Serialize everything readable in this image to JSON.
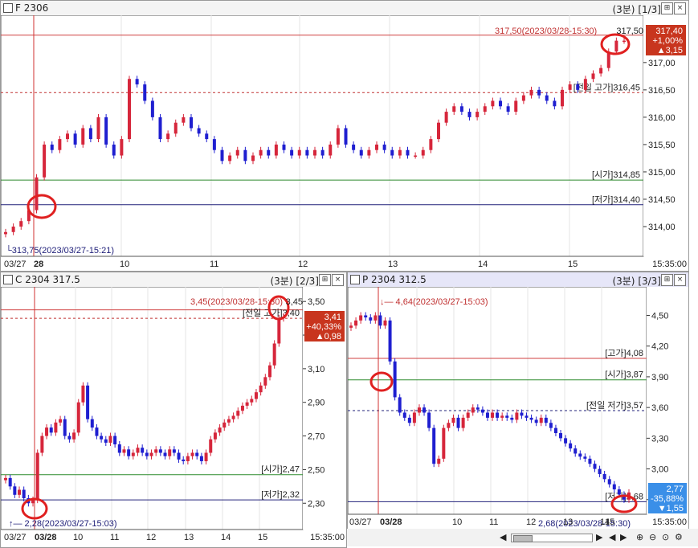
{
  "panels": {
    "futures": {
      "title": "F 2306",
      "timeframe": "(3분)",
      "index": "[1/3]",
      "time_end": "15:35:00",
      "high_note": "317,50(2023/03/28-15:30)",
      "high_val": "317,50",
      "low_note": "313,75(2023/03/27-15:21)",
      "prev_high_label": "[전일 고가]316,45",
      "open_label": "[시가]314,85",
      "low_label": "[저가]314,40",
      "badge": {
        "price": "317,40",
        "pct": "+1,00%",
        "chg": "▲3,15"
      },
      "x_labels": [
        "03/27",
        "28",
        "10",
        "11",
        "12",
        "13",
        "14",
        "15"
      ],
      "y_ticks": [
        "317,00",
        "316,50",
        "316,00",
        "315,50",
        "315,00",
        "314,50",
        "314,00"
      ],
      "chart_data": {
        "type": "candlestick",
        "title": "F 2306",
        "y_ticks": [
          314.0,
          314.5,
          315.0,
          315.5,
          316.0,
          316.5,
          317.0,
          317.5
        ],
        "x_ticks": [
          "03/27",
          "28",
          "10",
          "11",
          "12",
          "13",
          "14",
          "15"
        ],
        "levels": {
          "prev_high": 316.45,
          "open": 314.85,
          "low": 314.4,
          "high": 317.5,
          "low_prev_day": 313.75
        },
        "close": [
          313.9,
          314.0,
          314.1,
          314.3,
          314.9,
          315.5,
          315.4,
          315.6,
          315.7,
          315.5,
          315.8,
          315.6,
          316.0,
          315.5,
          315.3,
          315.6,
          316.7,
          316.6,
          316.3,
          316.0,
          315.6,
          315.7,
          315.9,
          316.0,
          315.8,
          315.7,
          315.6,
          315.4,
          315.2,
          315.3,
          315.4,
          315.2,
          315.3,
          315.4,
          315.3,
          315.5,
          315.4,
          315.3,
          315.4,
          315.3,
          315.4,
          315.3,
          315.5,
          315.8,
          315.5,
          315.4,
          315.3,
          315.4,
          315.5,
          315.4,
          315.3,
          315.4,
          315.3,
          315.3,
          315.4,
          315.6,
          315.9,
          316.1,
          316.2,
          316.1,
          316.0,
          316.1,
          316.2,
          316.3,
          316.2,
          316.1,
          316.3,
          316.4,
          316.5,
          316.4,
          316.3,
          316.2,
          316.5,
          316.6,
          316.5,
          316.7,
          316.8,
          316.9,
          317.2,
          317.4,
          317.4
        ]
      }
    },
    "call": {
      "title": "C 2304 317.5",
      "timeframe": "(3분)",
      "index": "[2/3]",
      "time_end": "15:35:00",
      "high_note": "3,45(2023/03/28-15:30)",
      "high_val": "3,45",
      "prev_high_label": "[전일 고가]3,40",
      "open_label": "[시가]2,47",
      "low_label": "[저가]2,32",
      "low_note": "2,28(2023/03/27-15:03)",
      "badge": {
        "price": "3,41",
        "pct": "+40,33%",
        "chg": "▲0,98"
      },
      "x_labels": [
        "03/27",
        "03/28",
        "10",
        "11",
        "12",
        "13",
        "14",
        "15"
      ],
      "y_ticks": [
        "3,50",
        "3,30",
        "3,10",
        "2,90",
        "2,70",
        "2,50",
        "2,30"
      ],
      "chart_data": {
        "type": "candlestick",
        "title": "C 2304 317.5",
        "y_ticks": [
          2.3,
          2.5,
          2.7,
          2.9,
          3.1,
          3.3,
          3.5
        ],
        "levels": {
          "prev_high": 3.4,
          "open": 2.47,
          "low": 2.32,
          "high": 3.45,
          "low_prev_day": 2.28
        },
        "close": [
          2.45,
          2.4,
          2.35,
          2.38,
          2.33,
          2.3,
          2.32,
          2.6,
          2.7,
          2.75,
          2.72,
          2.78,
          2.8,
          2.7,
          2.68,
          2.72,
          2.9,
          3.0,
          2.8,
          2.75,
          2.7,
          2.68,
          2.66,
          2.7,
          2.65,
          2.6,
          2.62,
          2.58,
          2.6,
          2.63,
          2.6,
          2.58,
          2.6,
          2.62,
          2.6,
          2.58,
          2.62,
          2.6,
          2.56,
          2.55,
          2.58,
          2.6,
          2.58,
          2.55,
          2.6,
          2.68,
          2.72,
          2.75,
          2.78,
          2.8,
          2.82,
          2.85,
          2.88,
          2.9,
          2.92,
          2.96,
          3.0,
          3.05,
          3.12,
          3.25,
          3.4,
          3.41
        ]
      }
    },
    "put": {
      "title": "P 2304 312.5",
      "timeframe": "(3분)",
      "index": "[3/3]",
      "time_end": "15:35:00",
      "high_note": "4,64(2023/03/27-15:03)",
      "high_label": "[고가]4,08",
      "open_label": "[시가]3,87",
      "prev_low_label": "[전일 저가]3,57",
      "low_label": "[저가]2,68",
      "low_note": "2,68(2023/03/28-15:30)",
      "badge": {
        "price": "2,77",
        "pct": "-35,88%",
        "chg": "▼1,55"
      },
      "x_labels": [
        "03/27",
        "03/28",
        "10",
        "11",
        "12",
        "13",
        "14",
        "15"
      ],
      "y_ticks": [
        "4,50",
        "4,20",
        "3,90",
        "3,60",
        "3,30",
        "3,00",
        "2,70"
      ],
      "chart_data": {
        "type": "candlestick",
        "title": "P 2304 312.5",
        "y_ticks": [
          2.7,
          3.0,
          3.3,
          3.6,
          3.9,
          4.2,
          4.5
        ],
        "levels": {
          "high": 4.08,
          "open": 3.87,
          "prev_low": 3.57,
          "low": 2.68,
          "high_prev_day": 4.64
        },
        "close": [
          4.4,
          4.45,
          4.5,
          4.48,
          4.45,
          4.5,
          4.4,
          4.45,
          4.05,
          3.7,
          3.55,
          3.5,
          3.45,
          3.55,
          3.6,
          3.55,
          3.4,
          3.05,
          3.1,
          3.4,
          3.45,
          3.5,
          3.4,
          3.5,
          3.55,
          3.6,
          3.58,
          3.55,
          3.5,
          3.55,
          3.5,
          3.52,
          3.5,
          3.48,
          3.55,
          3.52,
          3.5,
          3.48,
          3.45,
          3.5,
          3.45,
          3.4,
          3.35,
          3.3,
          3.25,
          3.2,
          3.15,
          3.12,
          3.1,
          3.05,
          3.0,
          2.95,
          2.9,
          2.85,
          2.8,
          2.75,
          2.7,
          2.77
        ]
      }
    }
  },
  "colors": {
    "up": "#d6263b",
    "down": "#1f1fd0",
    "open_line": "#2e8b2e",
    "low_line": "#20207a",
    "high_line": "#d04040",
    "badge_up": "#c8351e",
    "badge_down": "#3a8fe8"
  },
  "toolbar": {
    "left": "◀",
    "right": "▶",
    "zoom_in": "+",
    "zoom_out": "−"
  }
}
